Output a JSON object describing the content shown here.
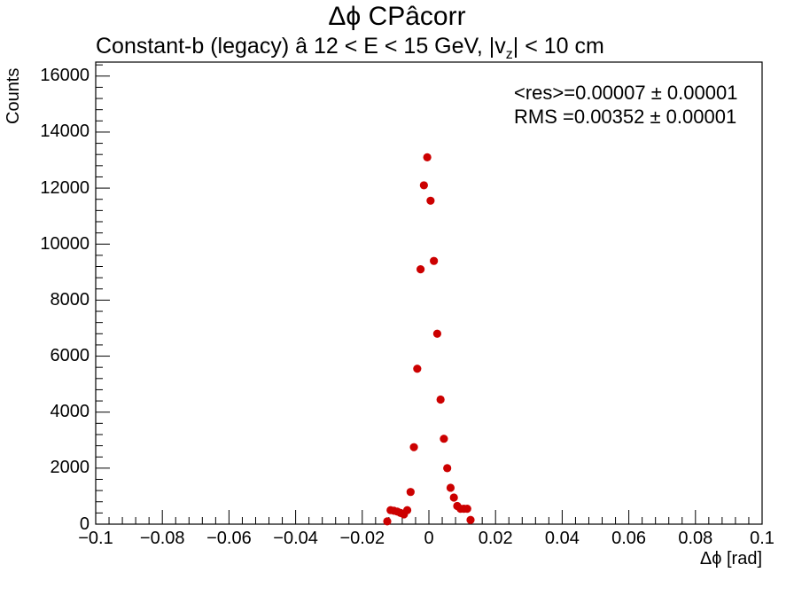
{
  "title": "Δϕ CPâcorr",
  "subtitle": {
    "main": "Constant-b (legacy)   â   12 < E < 15 GeV, |v",
    "sub": "z",
    "tail": "| < 10 cm"
  },
  "stats": {
    "line1": "<res>=0.00007 ± 0.00001",
    "line2": "RMS =0.00352 ± 0.00001"
  },
  "chart_data": {
    "type": "scatter",
    "title": "Δϕ CPâcorr",
    "xlabel": "Δϕ  [rad]",
    "ylabel": "Counts",
    "xlim": [
      -0.1,
      0.1
    ],
    "ylim": [
      0,
      16500
    ],
    "x_ticks": [
      "−0.1",
      "−0.08",
      "−0.06",
      "−0.04",
      "−0.02",
      "0",
      "0.02",
      "0.04",
      "0.06",
      "0.08",
      "0.1"
    ],
    "x_tick_values": [
      -0.1,
      -0.08,
      -0.06,
      -0.04,
      -0.02,
      0,
      0.02,
      0.04,
      0.06,
      0.08,
      0.1
    ],
    "y_ticks": [
      "0",
      "2000",
      "4000",
      "6000",
      "8000",
      "10000",
      "12000",
      "14000",
      "16000"
    ],
    "y_tick_values": [
      0,
      2000,
      4000,
      6000,
      8000,
      10000,
      12000,
      14000,
      16000
    ],
    "grid": false,
    "marker_color": "#cc0000",
    "series": [
      {
        "x": [
          -0.0125,
          -0.0115,
          -0.0105,
          -0.0095,
          -0.0085,
          -0.0075,
          -0.0065,
          -0.0055,
          -0.0045,
          -0.0035,
          -0.0025,
          -0.0015,
          -0.0005,
          0.0005,
          0.0015,
          0.0025,
          0.0035,
          0.0045,
          0.0055,
          0.0065,
          0.0075,
          0.0085,
          0.0095,
          0.0105,
          0.0115,
          0.0125
        ],
        "y": [
          100,
          500,
          480,
          450,
          400,
          350,
          500,
          1150,
          2750,
          5550,
          9100,
          12100,
          13100,
          11550,
          9400,
          6800,
          4450,
          3050,
          2000,
          1300,
          950,
          650,
          550,
          550,
          550,
          150
        ]
      }
    ]
  }
}
